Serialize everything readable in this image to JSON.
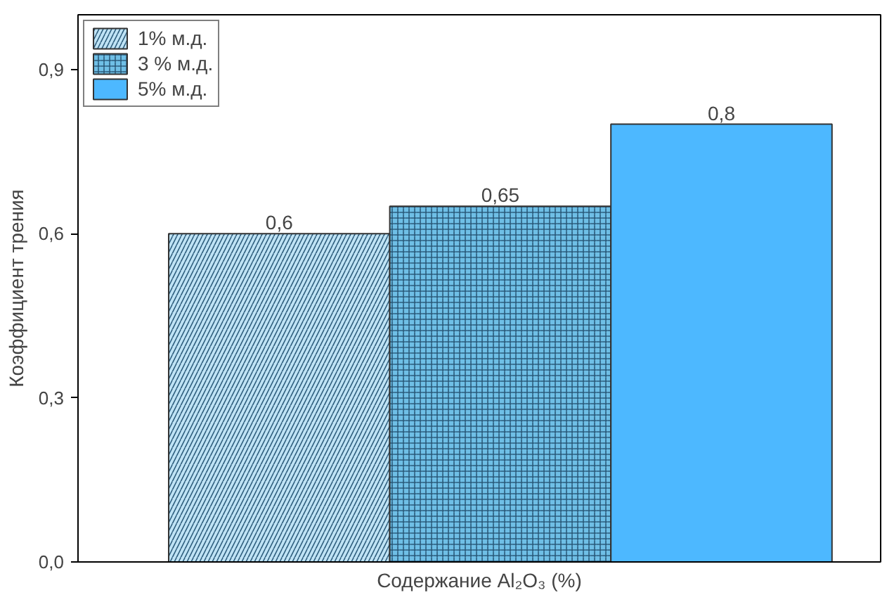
{
  "chart_data": {
    "type": "bar",
    "xlabel": "Содержание Al₂O₃ (%)",
    "ylabel": "Коэффициент трения",
    "categories": [
      null
    ],
    "series": [
      {
        "name": "1% м.д.",
        "color": "#bfe3f5",
        "values": [
          0.6
        ],
        "value_labels": [
          "0,6"
        ]
      },
      {
        "name": "3 % м.д.",
        "color": "#6fbfe6",
        "values": [
          0.65
        ],
        "value_labels": [
          "0,65"
        ]
      },
      {
        "name": "5% м.д.",
        "color": "#4db8ff",
        "values": [
          0.8
        ],
        "value_labels": [
          "0,8"
        ]
      }
    ],
    "ylim": [
      0,
      1.0
    ],
    "yticks": [
      {
        "value": 0,
        "label": "0,0"
      },
      {
        "value": 0.3,
        "label": "0,3"
      },
      {
        "value": 0.6,
        "label": "0,6"
      },
      {
        "value": 0.9,
        "label": "0,9"
      }
    ],
    "grid": false,
    "legend": "top left"
  }
}
